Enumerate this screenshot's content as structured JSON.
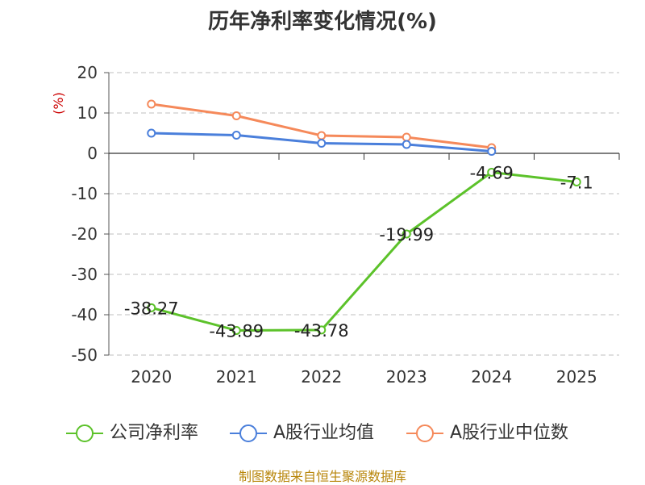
{
  "title": "历年净利率变化情况(%)",
  "source": "制图数据来自恒生聚源数据库",
  "chart_data": {
    "type": "line",
    "title": "历年净利率变化情况(%)",
    "ylabel": "(%)",
    "categories": [
      "2020",
      "2021",
      "2022",
      "2023",
      "2024",
      "2025"
    ],
    "ylim": [
      -50,
      20
    ],
    "yticks": [
      "20",
      "10",
      "0",
      "-10",
      "-20",
      "-30",
      "-40",
      "-50"
    ],
    "grid": true,
    "legend_position": "bottom",
    "series": [
      {
        "name": "公司净利率",
        "color": "#5cc22a",
        "values": [
          -38.27,
          -43.89,
          -43.78,
          -19.99,
          -4.69,
          -7.1
        ],
        "labels": [
          "-38.27",
          "-43.89",
          "-43.78",
          "-19.99",
          "-4.69",
          "-7.1"
        ]
      },
      {
        "name": "A股行业均值",
        "color": "#4a7fdb",
        "values": [
          5.0,
          4.5,
          2.5,
          2.2,
          0.5,
          null
        ]
      },
      {
        "name": "A股行业中位数",
        "color": "#f5895a",
        "values": [
          12.2,
          9.3,
          4.4,
          4.0,
          1.4,
          null
        ]
      }
    ]
  }
}
